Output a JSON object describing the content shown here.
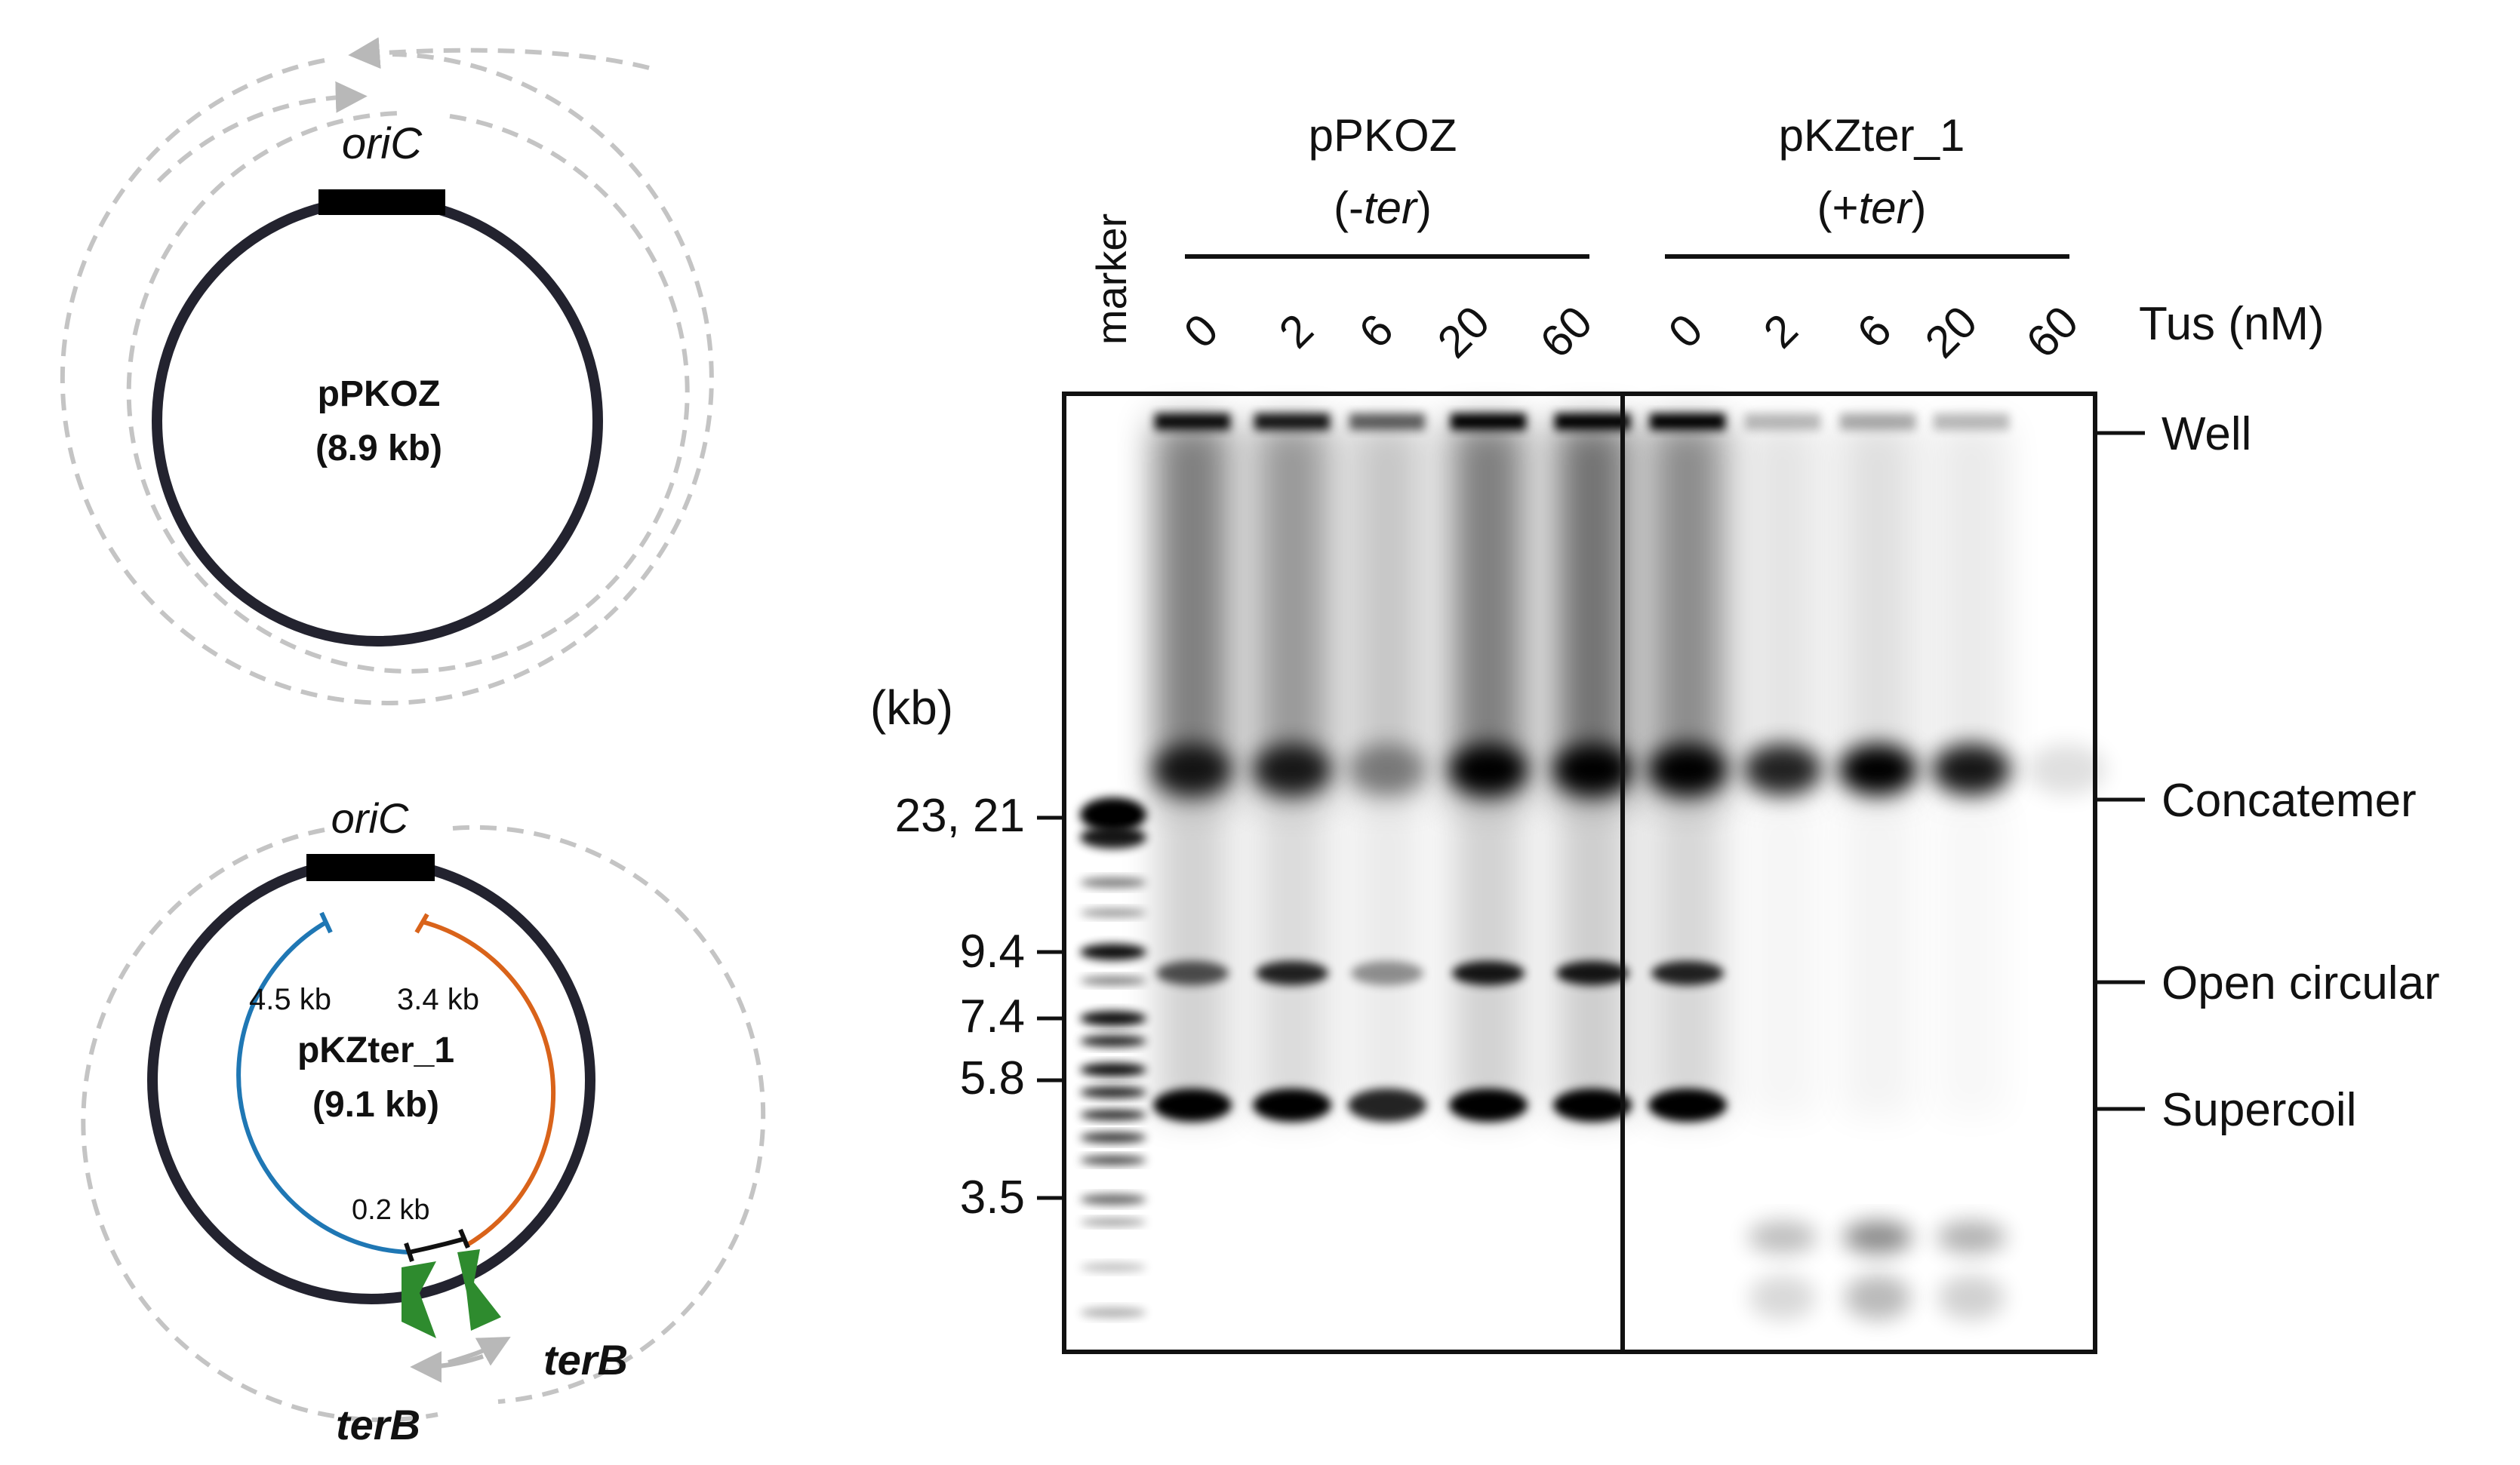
{
  "plasmids": [
    {
      "name": "pPKOZ",
      "size": "(8.9 kb)",
      "origin": "oriC"
    },
    {
      "name": "pKZter_1",
      "size": "(9.1 kb)",
      "origin": "oriC",
      "segments": [
        {
          "label": "4.5 kb",
          "color": "#1f77b4"
        },
        {
          "label": "3.4 kb",
          "color": "#d9631a"
        },
        {
          "label": "0.2 kb",
          "color": "#111111"
        }
      ],
      "ter_sites": [
        "terB",
        "terB"
      ],
      "ter_color": "#2e8b2e"
    }
  ],
  "gel": {
    "marker_label": "marker",
    "unit_label": "(kb)",
    "size_markers": [
      "23, 21",
      "9.4",
      "7.4",
      "5.8",
      "3.5"
    ],
    "groups": [
      {
        "name": "pPKOZ",
        "prefix": "(-",
        "ter": "ter",
        "suffix": ")"
      },
      {
        "name": "pKZter_1",
        "prefix": "(+",
        "ter": "ter",
        "suffix": ")"
      }
    ],
    "tus_label": "Tus (nM)",
    "concentrations": [
      "0",
      "2",
      "6",
      "20",
      "60"
    ],
    "band_labels": [
      "Well",
      "Concatemer",
      "Open circular",
      "Supercoil"
    ]
  }
}
